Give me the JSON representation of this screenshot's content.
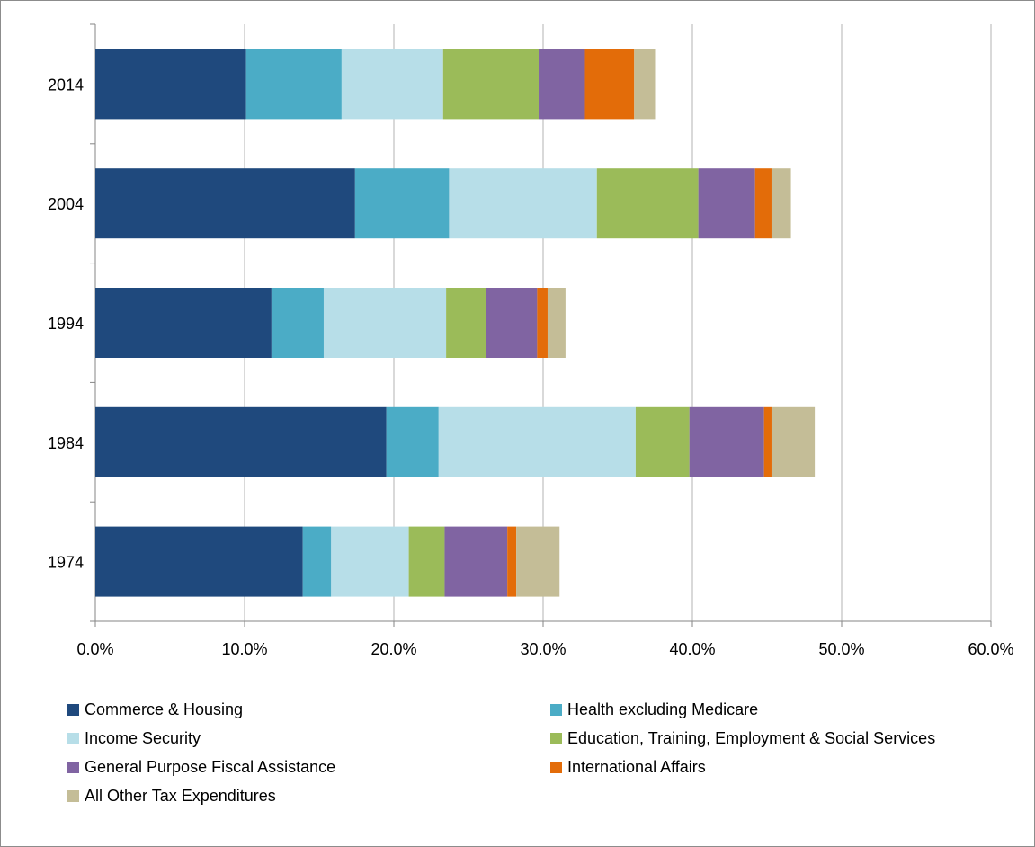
{
  "chart_data": {
    "type": "bar",
    "orientation": "horizontal",
    "stacked": true,
    "categories": [
      "1974",
      "1984",
      "1994",
      "2004",
      "2014"
    ],
    "series": [
      {
        "name": "Commerce & Housing",
        "color": "#1f497d",
        "values": [
          13.9,
          19.5,
          11.8,
          17.4,
          10.1
        ]
      },
      {
        "name": "Health excluding Medicare",
        "color": "#4bacc6",
        "values": [
          1.9,
          3.5,
          3.5,
          6.3,
          6.4
        ]
      },
      {
        "name": "Income Security",
        "color": "#b7dee8",
        "values": [
          5.2,
          13.2,
          8.2,
          9.9,
          6.8
        ]
      },
      {
        "name": "Education, Training, Employment & Social Services",
        "color": "#9bbb59",
        "values": [
          2.4,
          3.6,
          2.7,
          6.8,
          6.4
        ]
      },
      {
        "name": "General Purpose Fiscal Assistance",
        "color": "#8064a2",
        "values": [
          4.2,
          5.0,
          3.4,
          3.8,
          3.1
        ]
      },
      {
        "name": "International Affairs",
        "color": "#e36c09",
        "values": [
          0.6,
          0.5,
          0.7,
          1.1,
          3.3
        ]
      },
      {
        "name": "All Other Tax Expenditures",
        "color": "#c4bd97",
        "values": [
          2.9,
          2.9,
          1.2,
          1.3,
          1.4
        ]
      }
    ],
    "xlim": [
      0,
      60
    ],
    "xticks": [
      "0.0%",
      "10.0%",
      "20.0%",
      "30.0%",
      "40.0%",
      "50.0%",
      "60.0%"
    ],
    "grid": "vertical",
    "legend_position": "bottom"
  }
}
